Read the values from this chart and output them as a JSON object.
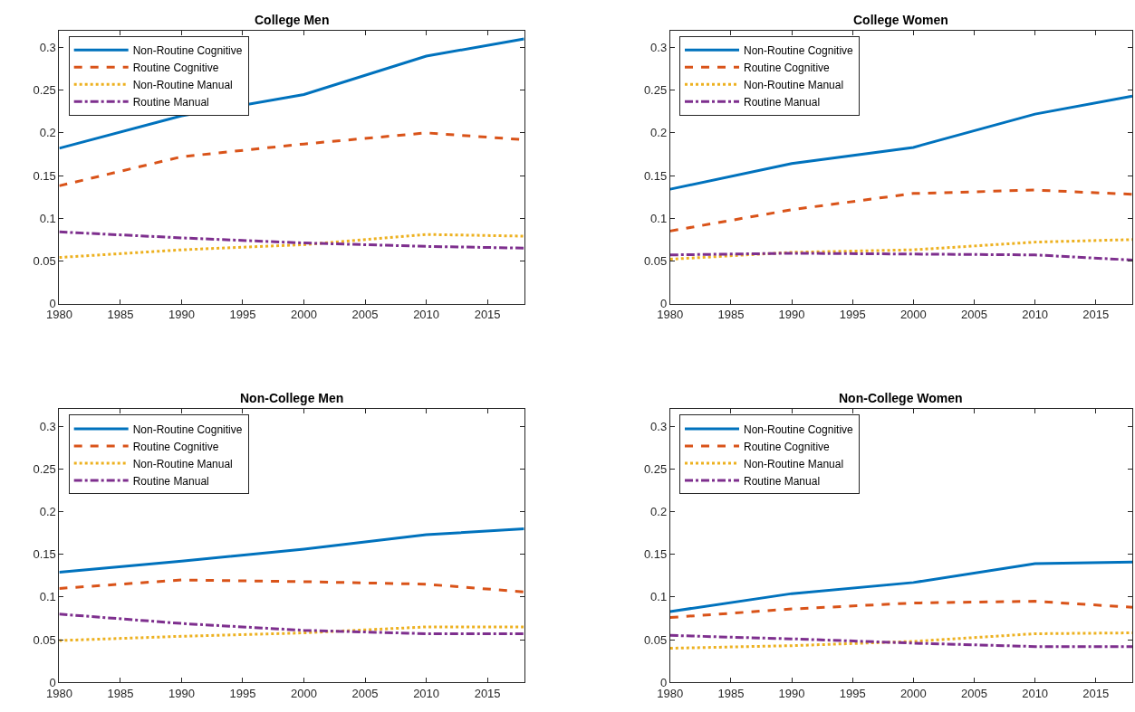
{
  "chart_data": [
    {
      "type": "line",
      "title": "College Men",
      "x": [
        1980,
        1990,
        2000,
        2010,
        2018
      ],
      "xlim": [
        1980,
        2018
      ],
      "xticks": [
        1980,
        1985,
        1990,
        1995,
        2000,
        2005,
        2010,
        2015
      ],
      "ylim": [
        0,
        0.32
      ],
      "yticks": [
        0,
        0.05,
        0.1,
        0.15,
        0.2,
        0.25,
        0.3
      ],
      "legend": "top left",
      "series": [
        {
          "name": "Non-Routine Cognitive",
          "color": "#0072bd",
          "line_style": "solid",
          "values": [
            0.182,
            0.22,
            0.245,
            0.29,
            0.31
          ]
        },
        {
          "name": "Routine Cognitive",
          "color": "#d95319",
          "line_style": "dashed",
          "values": [
            0.138,
            0.172,
            0.187,
            0.2,
            0.192
          ]
        },
        {
          "name": "Non-Routine Manual",
          "color": "#edb120",
          "line_style": "dotted",
          "values": [
            0.054,
            0.063,
            0.069,
            0.081,
            0.079
          ]
        },
        {
          "name": "Routine Manual",
          "color": "#7e2f8e",
          "line_style": "dashdot",
          "values": [
            0.084,
            0.077,
            0.071,
            0.067,
            0.065
          ]
        }
      ]
    },
    {
      "type": "line",
      "title": "College Women",
      "x": [
        1980,
        1990,
        2000,
        2010,
        2018
      ],
      "xlim": [
        1980,
        2018
      ],
      "xticks": [
        1980,
        1985,
        1990,
        1995,
        2000,
        2005,
        2010,
        2015
      ],
      "ylim": [
        0,
        0.32
      ],
      "yticks": [
        0,
        0.05,
        0.1,
        0.15,
        0.2,
        0.25,
        0.3
      ],
      "legend": "top left",
      "series": [
        {
          "name": "Non-Routine Cognitive",
          "color": "#0072bd",
          "line_style": "solid",
          "values": [
            0.134,
            0.164,
            0.183,
            0.222,
            0.243
          ]
        },
        {
          "name": "Routine Cognitive",
          "color": "#d95319",
          "line_style": "dashed",
          "values": [
            0.085,
            0.11,
            0.129,
            0.133,
            0.128
          ]
        },
        {
          "name": "Non-Routine Manual",
          "color": "#edb120",
          "line_style": "dotted",
          "values": [
            0.052,
            0.06,
            0.063,
            0.072,
            0.075
          ]
        },
        {
          "name": "Routine Manual",
          "color": "#7e2f8e",
          "line_style": "dashdot",
          "values": [
            0.057,
            0.059,
            0.058,
            0.057,
            0.051
          ]
        }
      ]
    },
    {
      "type": "line",
      "title": "Non-College Men",
      "x": [
        1980,
        1990,
        2000,
        2010,
        2018
      ],
      "xlim": [
        1980,
        2018
      ],
      "xticks": [
        1980,
        1985,
        1990,
        1995,
        2000,
        2005,
        2010,
        2015
      ],
      "ylim": [
        0,
        0.32
      ],
      "yticks": [
        0,
        0.05,
        0.1,
        0.15,
        0.2,
        0.25,
        0.3
      ],
      "legend": "top left",
      "series": [
        {
          "name": "Non-Routine Cognitive",
          "color": "#0072bd",
          "line_style": "solid",
          "values": [
            0.129,
            0.142,
            0.156,
            0.173,
            0.18
          ]
        },
        {
          "name": "Routine Cognitive",
          "color": "#d95319",
          "line_style": "dashed",
          "values": [
            0.11,
            0.12,
            0.118,
            0.115,
            0.106
          ]
        },
        {
          "name": "Non-Routine Manual",
          "color": "#edb120",
          "line_style": "dotted",
          "values": [
            0.049,
            0.054,
            0.058,
            0.065,
            0.065
          ]
        },
        {
          "name": "Routine Manual",
          "color": "#7e2f8e",
          "line_style": "dashdot",
          "values": [
            0.08,
            0.069,
            0.061,
            0.057,
            0.057
          ]
        }
      ]
    },
    {
      "type": "line",
      "title": "Non-College Women",
      "x": [
        1980,
        1990,
        2000,
        2010,
        2018
      ],
      "xlim": [
        1980,
        2018
      ],
      "xticks": [
        1980,
        1985,
        1990,
        1995,
        2000,
        2005,
        2010,
        2015
      ],
      "ylim": [
        0,
        0.32
      ],
      "yticks": [
        0,
        0.05,
        0.1,
        0.15,
        0.2,
        0.25,
        0.3
      ],
      "legend": "top left",
      "series": [
        {
          "name": "Non-Routine Cognitive",
          "color": "#0072bd",
          "line_style": "solid",
          "values": [
            0.083,
            0.104,
            0.117,
            0.139,
            0.141
          ]
        },
        {
          "name": "Routine Cognitive",
          "color": "#d95319",
          "line_style": "dashed",
          "values": [
            0.076,
            0.086,
            0.093,
            0.095,
            0.088
          ]
        },
        {
          "name": "Non-Routine Manual",
          "color": "#edb120",
          "line_style": "dotted",
          "values": [
            0.04,
            0.043,
            0.048,
            0.057,
            0.058
          ]
        },
        {
          "name": "Routine Manual",
          "color": "#7e2f8e",
          "line_style": "dashdot",
          "values": [
            0.055,
            0.051,
            0.046,
            0.042,
            0.042
          ]
        }
      ]
    }
  ]
}
